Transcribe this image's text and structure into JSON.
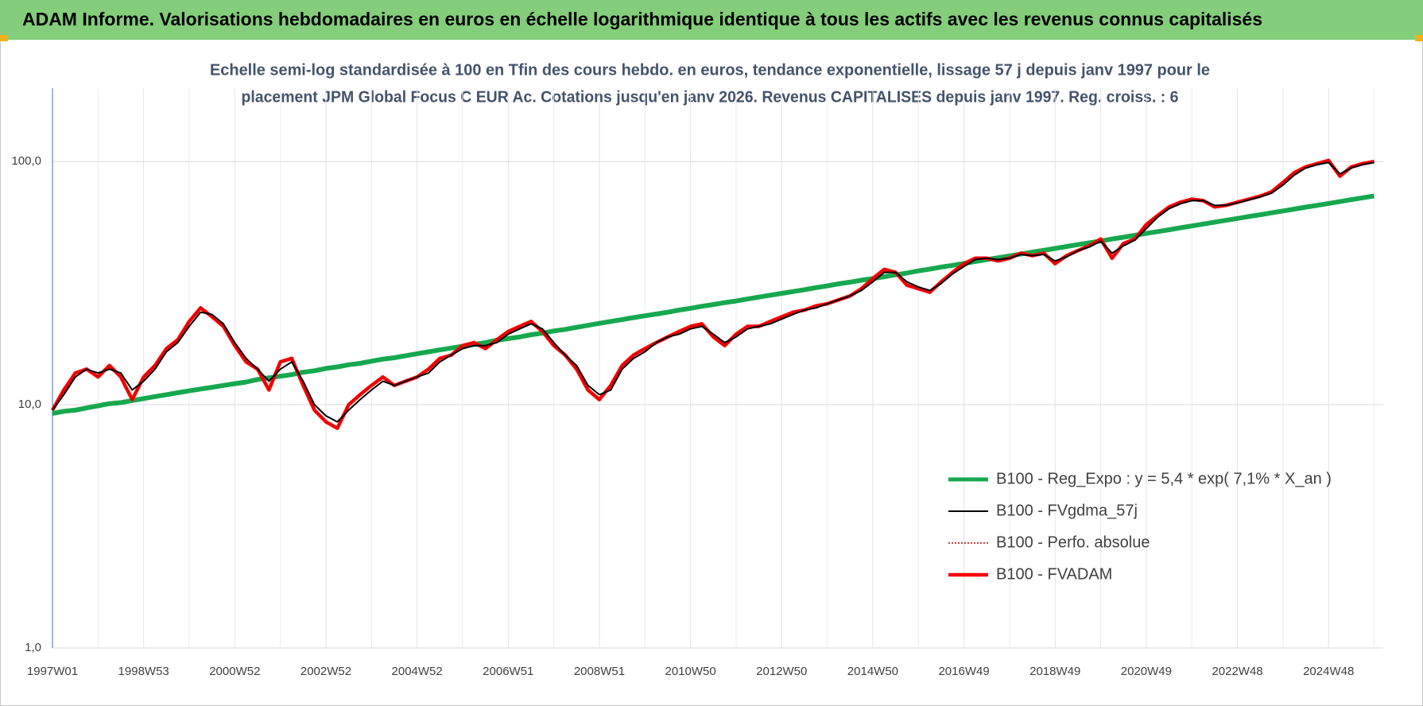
{
  "chart_data": {
    "type": "line",
    "title": "ADAM Informe. Valorisations hebdomadaires en euros en échelle logarithmique identique à tous les actifs avec les revenus connus capitalisés",
    "subtitle": [
      "Echelle semi-log standardisée à 100 en Tfin des cours hebdo. en euros, tendance exponentielle, lissage 57 j depuis janv 1997 pour le",
      "placement JPM Global Focus C EUR Ac. Cotations jusqu'en janv 2026. Revenus CAPITALISES depuis janv 1997. Reg. croiss. : 6"
    ],
    "log_scale": true,
    "grid": true,
    "legend": "lower right",
    "ylim": [
      1,
      200
    ],
    "yticks": [
      {
        "value": 1,
        "label": "1,0"
      },
      {
        "value": 10,
        "label": "10,0"
      },
      {
        "value": 100,
        "label": "100,0"
      }
    ],
    "categories": [
      "1997W01",
      null,
      null,
      null,
      null,
      null,
      null,
      null,
      "1998W53",
      null,
      null,
      null,
      null,
      null,
      null,
      null,
      "2000W52",
      null,
      null,
      null,
      null,
      null,
      null,
      null,
      "2002W52",
      null,
      null,
      null,
      null,
      null,
      null,
      null,
      "2004W52",
      null,
      null,
      null,
      null,
      null,
      null,
      null,
      "2006W51",
      null,
      null,
      null,
      null,
      null,
      null,
      null,
      "2008W51",
      null,
      null,
      null,
      null,
      null,
      null,
      null,
      "2010W50",
      null,
      null,
      null,
      null,
      null,
      null,
      null,
      "2012W50",
      null,
      null,
      null,
      null,
      null,
      null,
      null,
      "2014W50",
      null,
      null,
      null,
      null,
      null,
      null,
      null,
      "2016W49",
      null,
      null,
      null,
      null,
      null,
      null,
      null,
      "2018W49",
      null,
      null,
      null,
      null,
      null,
      null,
      null,
      "2020W49",
      null,
      null,
      null,
      null,
      null,
      null,
      null,
      "2022W48",
      null,
      null,
      null,
      null,
      null,
      null,
      null,
      "2024W48",
      null,
      null,
      null,
      null
    ],
    "series": [
      {
        "name": "B100 - Reg_Expo : y = 5,4 * exp( 7,1% *  X_an )",
        "color": "#16a84e",
        "style": "solid",
        "values": [
          9.2,
          9.4,
          9.5,
          9.7,
          9.9,
          10.1,
          10.2,
          10.4,
          10.6,
          10.8,
          11.0,
          11.2,
          11.4,
          11.6,
          11.8,
          12.0,
          12.2,
          12.4,
          12.7,
          12.9,
          13.1,
          13.3,
          13.6,
          13.8,
          14.1,
          14.3,
          14.6,
          14.8,
          15.1,
          15.4,
          15.6,
          15.9,
          16.2,
          16.5,
          16.8,
          17.1,
          17.4,
          17.7,
          18.0,
          18.4,
          18.7,
          19.0,
          19.4,
          19.7,
          20.1,
          20.4,
          20.8,
          21.2,
          21.6,
          22.0,
          22.4,
          22.8,
          23.2,
          23.6,
          24.0,
          24.5,
          24.9,
          25.4,
          25.8,
          26.3,
          26.7,
          27.2,
          27.7,
          28.2,
          28.7,
          29.2,
          29.7,
          30.3,
          30.8,
          31.4,
          31.9,
          32.5,
          33.0,
          33.6,
          34.2,
          34.8,
          35.5,
          36.1,
          36.8,
          37.4,
          38.1,
          38.8,
          39.5,
          40.2,
          40.9,
          41.6,
          42.4,
          43.1,
          43.9,
          44.7,
          45.5,
          46.3,
          47.1,
          48.0,
          48.8,
          49.7,
          50.6,
          51.5,
          52.4,
          53.4,
          54.3,
          55.3,
          56.3,
          57.3,
          58.3,
          59.4,
          60.4,
          61.5,
          62.6,
          63.7,
          64.9,
          66.0,
          67.2,
          68.4,
          69.7,
          70.9,
          72.2
        ]
      },
      {
        "name": "B100 - FVgdma_57j",
        "color": "#000000",
        "style": "solid",
        "values": [
          9.5,
          11,
          13,
          14,
          13.5,
          14,
          13.5,
          11.5,
          12.5,
          14,
          16.5,
          18,
          21,
          24,
          23.5,
          21.5,
          18,
          15.5,
          14,
          12.5,
          14,
          15,
          12.5,
          10,
          9,
          8.5,
          9.5,
          10.5,
          11.5,
          12.5,
          12,
          12.5,
          13,
          13.5,
          15,
          16,
          17,
          17.5,
          17.5,
          18,
          19.5,
          20.5,
          21.5,
          20.5,
          18,
          16,
          14.5,
          12,
          11,
          11.5,
          14,
          15.5,
          16.5,
          18,
          19,
          19.5,
          20.5,
          21,
          19.5,
          18,
          19,
          20.5,
          21,
          21.5,
          22.5,
          23.5,
          24.5,
          25,
          26,
          27,
          28,
          29.5,
          32,
          35,
          35,
          32,
          30.5,
          29.5,
          31.5,
          34.5,
          37,
          39.5,
          40,
          39.5,
          40,
          41.5,
          41,
          41.5,
          39,
          40.5,
          43,
          44.5,
          47,
          42,
          45,
          47.5,
          53,
          59,
          64,
          67,
          69,
          69,
          66,
          66,
          67.5,
          69.5,
          71.5,
          74,
          80,
          88,
          94,
          97,
          99,
          89,
          94,
          97,
          99
        ]
      },
      {
        "name": "B100 - Perfo. absolue",
        "color": "#c00000",
        "style": "dotted",
        "values": [
          9.5,
          11.5,
          13.5,
          14,
          13,
          14.5,
          13,
          10.5,
          13,
          14.5,
          17,
          18.5,
          22,
          25,
          23,
          21,
          17.5,
          15,
          14,
          11.5,
          15,
          15.5,
          12,
          9.5,
          8.5,
          8,
          10,
          11,
          12,
          13,
          12,
          12.5,
          13,
          14,
          15.5,
          16,
          17.5,
          18,
          17,
          18.5,
          20,
          21,
          22,
          20,
          17.5,
          16,
          14,
          11.5,
          10.5,
          12,
          14.5,
          16,
          17,
          18,
          19,
          20,
          21,
          21.5,
          19,
          17.5,
          19.5,
          21,
          21,
          22,
          23,
          24,
          24.5,
          25.5,
          26,
          27,
          28,
          30,
          33,
          36,
          35,
          31,
          30,
          29,
          32,
          35,
          38,
          40,
          40,
          39,
          40,
          42,
          41,
          42,
          38,
          41,
          43,
          45,
          48,
          40,
          46,
          48,
          55,
          60,
          65,
          68,
          70,
          69,
          65,
          66,
          68,
          70,
          72,
          75,
          82,
          90,
          95,
          98,
          101,
          87,
          95,
          98,
          100
        ]
      },
      {
        "name": "B100 - FVADAM",
        "color": "#ff0000",
        "style": "solid",
        "values": [
          9.5,
          11.5,
          13.5,
          14,
          13,
          14.5,
          13,
          10.5,
          13,
          14.5,
          17,
          18.5,
          22,
          25,
          23,
          21,
          17.5,
          15,
          14,
          11.5,
          15,
          15.5,
          12,
          9.5,
          8.5,
          8,
          10,
          11,
          12,
          13,
          12,
          12.5,
          13,
          14,
          15.5,
          16,
          17.5,
          18,
          17,
          18.5,
          20,
          21,
          22,
          20,
          17.5,
          16,
          14,
          11.5,
          10.5,
          12,
          14.5,
          16,
          17,
          18,
          19,
          20,
          21,
          21.5,
          19,
          17.5,
          19.5,
          21,
          21,
          22,
          23,
          24,
          24.5,
          25.5,
          26,
          27,
          28,
          30,
          33,
          36,
          35,
          31,
          30,
          29,
          32,
          35,
          38,
          40,
          40,
          39,
          40,
          42,
          41,
          42,
          38,
          41,
          43,
          45,
          48,
          40,
          46,
          48,
          55,
          60,
          65,
          68,
          70,
          69,
          65,
          66,
          68,
          70,
          72,
          75,
          82,
          90,
          95,
          98,
          101,
          87,
          95,
          98,
          100
        ]
      }
    ]
  }
}
